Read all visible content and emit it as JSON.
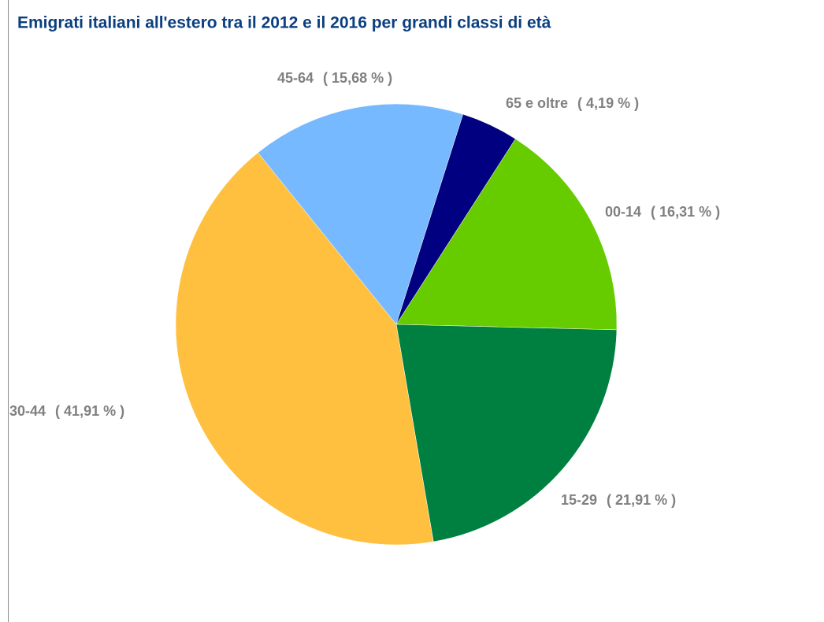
{
  "chart_data": {
    "type": "pie",
    "title": "Emigrati italiani all'estero tra il 2012 e il 2016 per grandi classi di età",
    "categories": [
      "00-14",
      "15-29",
      "30-44",
      "45-64",
      "65 e oltre"
    ],
    "values": [
      16.31,
      21.91,
      41.91,
      15.68,
      4.19
    ],
    "value_labels": [
      "( 16,31 % )",
      "( 21,91 % )",
      "( 41,91 % )",
      "( 15,68 % )",
      "( 4,19 % )"
    ],
    "colors": [
      "#66cc00",
      "#008040",
      "#ffc040",
      "#77b9ff",
      "#000080"
    ]
  }
}
